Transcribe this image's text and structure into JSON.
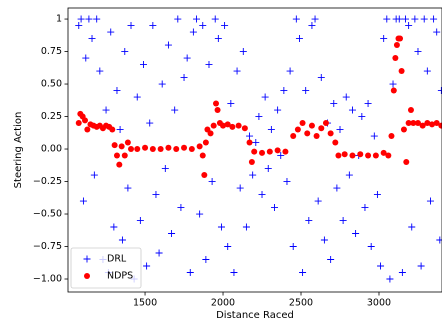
{
  "chart_data": {
    "type": "scatter",
    "xlabel": "Distance Raced",
    "ylabel": "Steering Action",
    "xlim": [
      1006,
      3404
    ],
    "ylim": [
      -1.1,
      1.085
    ],
    "xticks": [
      1500,
      2000,
      2500,
      3000
    ],
    "yticks": [
      1.0,
      {
        "value": 0.75,
        "label": "0.75"
      },
      {
        "value": 0.5,
        "label": "0.50"
      },
      {
        "value": 0.25,
        "label": "0.25"
      },
      {
        "value": 0,
        "label": "0.00"
      },
      {
        "value": -0.25,
        "label": "−0.25"
      },
      {
        "value": -0.5,
        "label": "−0.50"
      },
      {
        "value": -0.75,
        "label": "−0.75"
      },
      {
        "value": -1,
        "label": "−1.00"
      }
    ],
    "legend": "lower left",
    "series": [
      {
        "name": "DRL",
        "color": "#0000ff",
        "marker": "plus",
        "x": [
          1075,
          1090,
          1105,
          1120,
          1140,
          1160,
          1175,
          1190,
          1210,
          1230,
          1250,
          1265,
          1280,
          1300,
          1320,
          1340,
          1355,
          1370,
          1390,
          1410,
          1430,
          1450,
          1470,
          1490,
          1510,
          1530,
          1550,
          1570,
          1590,
          1610,
          1630,
          1650,
          1670,
          1690,
          1710,
          1730,
          1750,
          1770,
          1790,
          1810,
          1830,
          1850,
          1870,
          1890,
          1910,
          1930,
          1950,
          1970,
          1990,
          2010,
          2030,
          2050,
          2070,
          2090,
          2110,
          2130,
          2150,
          2170,
          2190,
          2210,
          2230,
          2250,
          2270,
          2290,
          2310,
          2330,
          2350,
          2370,
          2390,
          2410,
          2430,
          2450,
          2470,
          2490,
          2510,
          2530,
          2550,
          2570,
          2590,
          2610,
          2630,
          2650,
          2670,
          2690,
          2710,
          2730,
          2750,
          2770,
          2790,
          2810,
          2830,
          2850,
          2870,
          2890,
          2910,
          2930,
          2950,
          2970,
          2990,
          3010,
          3030,
          3050,
          3070,
          3090,
          3110,
          3130,
          3150,
          3170,
          3190,
          3210,
          3230,
          3250,
          3270,
          3290,
          3310,
          3330,
          3350,
          3370,
          3390,
          3400
        ],
        "values": [
          0.95,
          1.0,
          -0.4,
          0.7,
          1.0,
          0.85,
          -0.2,
          1.0,
          0.6,
          -0.85,
          0.3,
          -0.95,
          0.9,
          -0.6,
          0.45,
          0.15,
          -0.7,
          0.75,
          -0.3,
          0.95,
          -1.0,
          0.4,
          -0.55,
          0.65,
          -0.9,
          0.2,
          0.95,
          -0.35,
          -0.8,
          0.5,
          -0.15,
          0.8,
          -0.65,
          0.3,
          1.0,
          -0.45,
          0.55,
          0.7,
          -0.95,
          0.9,
          1.0,
          -0.5,
          0.95,
          -0.85,
          0.65,
          -0.25,
          1.0,
          0.85,
          -0.6,
          0.95,
          -0.75,
          0.35,
          -0.95,
          0.6,
          -0.3,
          0.75,
          -0.6,
          0.1,
          -0.2,
          0.05,
          0.25,
          -0.35,
          0.4,
          -0.15,
          0.15,
          -0.45,
          0.3,
          -0.05,
          0.45,
          -0.25,
          0.6,
          -0.75,
          1.0,
          0.85,
          -0.95,
          0.45,
          -0.55,
          0.95,
          1.0,
          -0.4,
          0.55,
          -0.7,
          0.2,
          -0.85,
          0.35,
          -0.3,
          0.15,
          -0.55,
          0.4,
          -0.2,
          0.3,
          -0.65,
          -0.05,
          0.25,
          -0.45,
          0.35,
          -0.75,
          0.1,
          -0.35,
          -0.9,
          0.85,
          1.0,
          -1.0,
          0.5,
          1.0,
          1.0,
          -0.95,
          1.0,
          0.95,
          -0.6,
          1.0,
          0.75,
          -0.9,
          1.0,
          0.6,
          -0.4,
          1.0,
          0.9,
          -0.7,
          0.45
        ]
      },
      {
        "name": "NDPS",
        "color": "#ff0000",
        "marker": "circle",
        "x": [
          1075,
          1085,
          1100,
          1115,
          1130,
          1150,
          1170,
          1190,
          1210,
          1230,
          1250,
          1270,
          1290,
          1305,
          1320,
          1335,
          1350,
          1370,
          1390,
          1410,
          1450,
          1500,
          1550,
          1600,
          1650,
          1700,
          1750,
          1800,
          1850,
          1870,
          1880,
          1890,
          1900,
          1920,
          1940,
          1955,
          1965,
          1980,
          2000,
          2030,
          2060,
          2100,
          2140,
          2170,
          2185,
          2200,
          2250,
          2300,
          2350,
          2400,
          2450,
          2480,
          2510,
          2540,
          2570,
          2600,
          2630,
          2660,
          2690,
          2720,
          2740,
          2780,
          2830,
          2880,
          2930,
          2980,
          3030,
          3060,
          3080,
          3095,
          3105,
          3115,
          3125,
          3135,
          3145,
          3160,
          3175,
          3190,
          3205,
          3220,
          3250,
          3280,
          3310,
          3340,
          3370,
          3400
        ],
        "values": [
          0.2,
          0.27,
          0.25,
          0.22,
          0.15,
          0.19,
          0.18,
          0.17,
          0.18,
          0.16,
          0.18,
          0.17,
          0.15,
          0.03,
          -0.05,
          -0.12,
          0.02,
          -0.05,
          0.05,
          0.0,
          0.0,
          0.01,
          0.0,
          0.0,
          0.01,
          0.0,
          0.01,
          0.0,
          0.02,
          -0.05,
          -0.2,
          0.05,
          0.15,
          0.12,
          0.18,
          0.35,
          0.3,
          0.2,
          0.18,
          0.19,
          0.17,
          0.18,
          0.16,
          0.05,
          -0.1,
          -0.02,
          -0.03,
          -0.02,
          -0.01,
          -0.02,
          0.1,
          0.15,
          0.2,
          0.12,
          0.18,
          0.1,
          0.16,
          0.2,
          0.12,
          0.05,
          -0.05,
          -0.04,
          -0.05,
          -0.04,
          -0.05,
          -0.05,
          -0.03,
          -0.05,
          0.1,
          0.45,
          0.7,
          0.8,
          0.85,
          0.85,
          0.6,
          0.15,
          -0.1,
          0.2,
          0.3,
          0.2,
          0.2,
          0.18,
          0.2,
          0.19,
          0.2,
          0.18
        ]
      }
    ]
  }
}
